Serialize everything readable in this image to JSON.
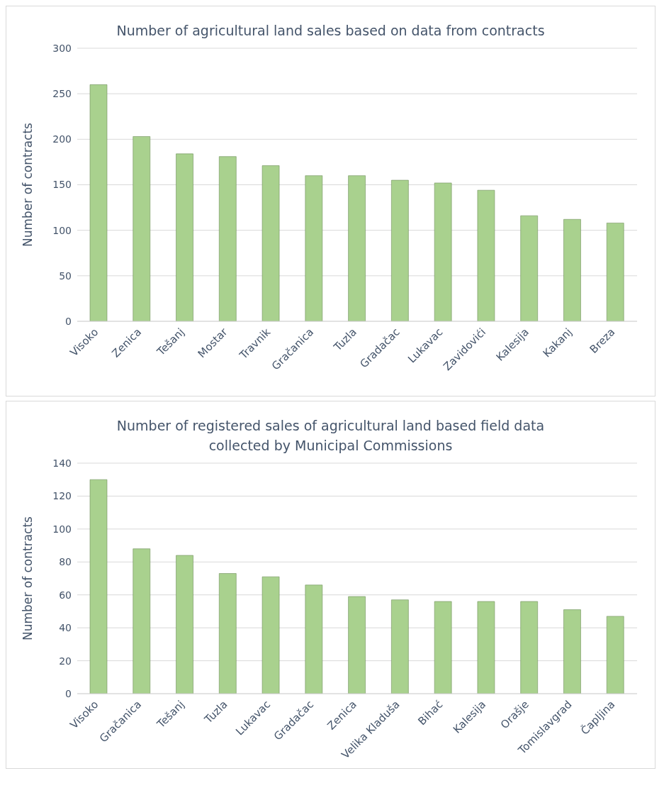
{
  "chart_data": [
    {
      "type": "bar",
      "title": "Number of agricultural land sales based on data from contracts",
      "ylabel": "Number of contracts",
      "categories": [
        "Visoko",
        "Zenica",
        "Tešanj",
        "Mostar",
        "Travnik",
        "Gračanica",
        "Tuzla",
        "Gradačac",
        "Lukavac",
        "Zavidovići",
        "Kalesija",
        "Kakanj",
        "Breza"
      ],
      "values": [
        260,
        203,
        184,
        181,
        171,
        160,
        160,
        155,
        152,
        144,
        116,
        112,
        108
      ],
      "color": "#a9d18e",
      "ylim": [
        0,
        300
      ],
      "yticks": [
        0,
        50,
        100,
        150,
        200,
        250,
        300
      ],
      "grid": "y"
    },
    {
      "type": "bar",
      "title": "Number of registered sales of agricultural land based field data collected by Municipal Commissions",
      "ylabel": "Number of contracts",
      "categories": [
        "Visoko",
        "Gračanica",
        "Tešanj",
        "Tuzla",
        "Lukavac",
        "Gradačac",
        "Zenica",
        "Velika Kladuša",
        "Bihać",
        "Kalesija",
        "Orašje",
        "Tomislavgrad",
        "Čapljina"
      ],
      "values": [
        130,
        88,
        84,
        73,
        71,
        66,
        59,
        57,
        56,
        56,
        56,
        51,
        47
      ],
      "color": "#a9d18e",
      "ylim": [
        0,
        140
      ],
      "yticks": [
        0,
        20,
        40,
        60,
        80,
        100,
        120,
        140
      ],
      "grid": "y"
    }
  ]
}
